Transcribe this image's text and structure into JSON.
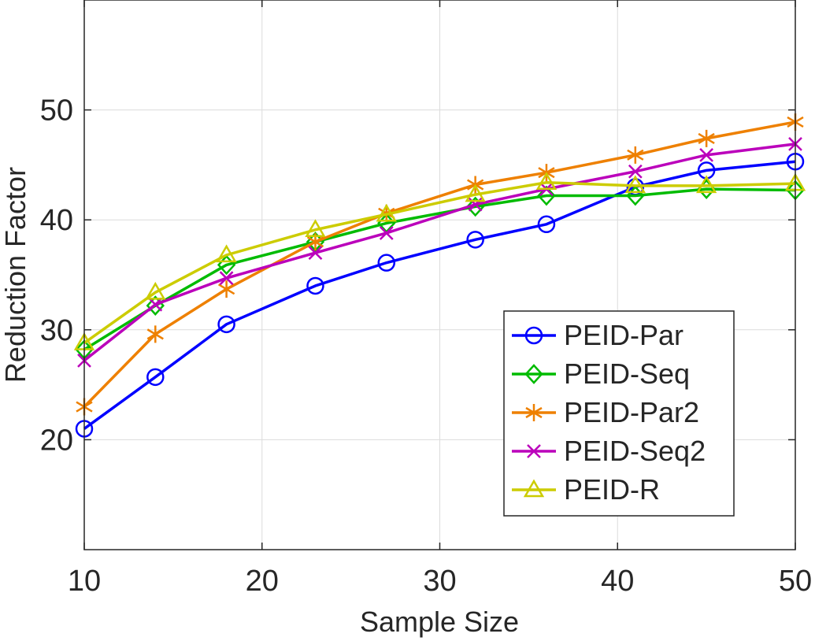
{
  "chart_data": {
    "type": "line",
    "title": "",
    "xlabel": "Sample Size",
    "ylabel": "Reduction Factor",
    "xlim": [
      10,
      50
    ],
    "ylim": [
      10,
      60
    ],
    "xticks": [
      10,
      20,
      30,
      40,
      50
    ],
    "yticks": [
      20,
      30,
      40,
      50
    ],
    "grid": true,
    "legend_location": "bottom-right",
    "x": [
      10,
      14,
      18,
      23,
      27,
      32,
      36,
      41,
      45,
      50
    ],
    "series": [
      {
        "name": "PEID-Par",
        "color": "#0000ff",
        "marker": "circle",
        "values": [
          21.0,
          25.7,
          30.5,
          34.0,
          36.1,
          38.2,
          39.6,
          43.0,
          44.5,
          45.3
        ]
      },
      {
        "name": "PEID-Seq",
        "color": "#00bb00",
        "marker": "diamond",
        "values": [
          28.2,
          32.2,
          35.9,
          38.0,
          39.7,
          41.2,
          42.2,
          42.2,
          42.8,
          42.7
        ]
      },
      {
        "name": "PEID-Par2",
        "color": "#ee8000",
        "marker": "asterisk",
        "values": [
          23.0,
          29.6,
          33.7,
          38.0,
          40.6,
          43.2,
          44.3,
          45.9,
          47.4,
          48.9
        ]
      },
      {
        "name": "PEID-Seq2",
        "color": "#bb00bb",
        "marker": "x",
        "values": [
          27.2,
          32.3,
          34.7,
          37.0,
          38.8,
          41.4,
          42.8,
          44.4,
          45.9,
          46.9
        ]
      },
      {
        "name": "PEID-R",
        "color": "#cccc00",
        "marker": "triangle",
        "values": [
          28.8,
          33.4,
          36.8,
          39.1,
          40.5,
          42.3,
          43.4,
          43.1,
          43.1,
          43.3
        ]
      }
    ]
  }
}
